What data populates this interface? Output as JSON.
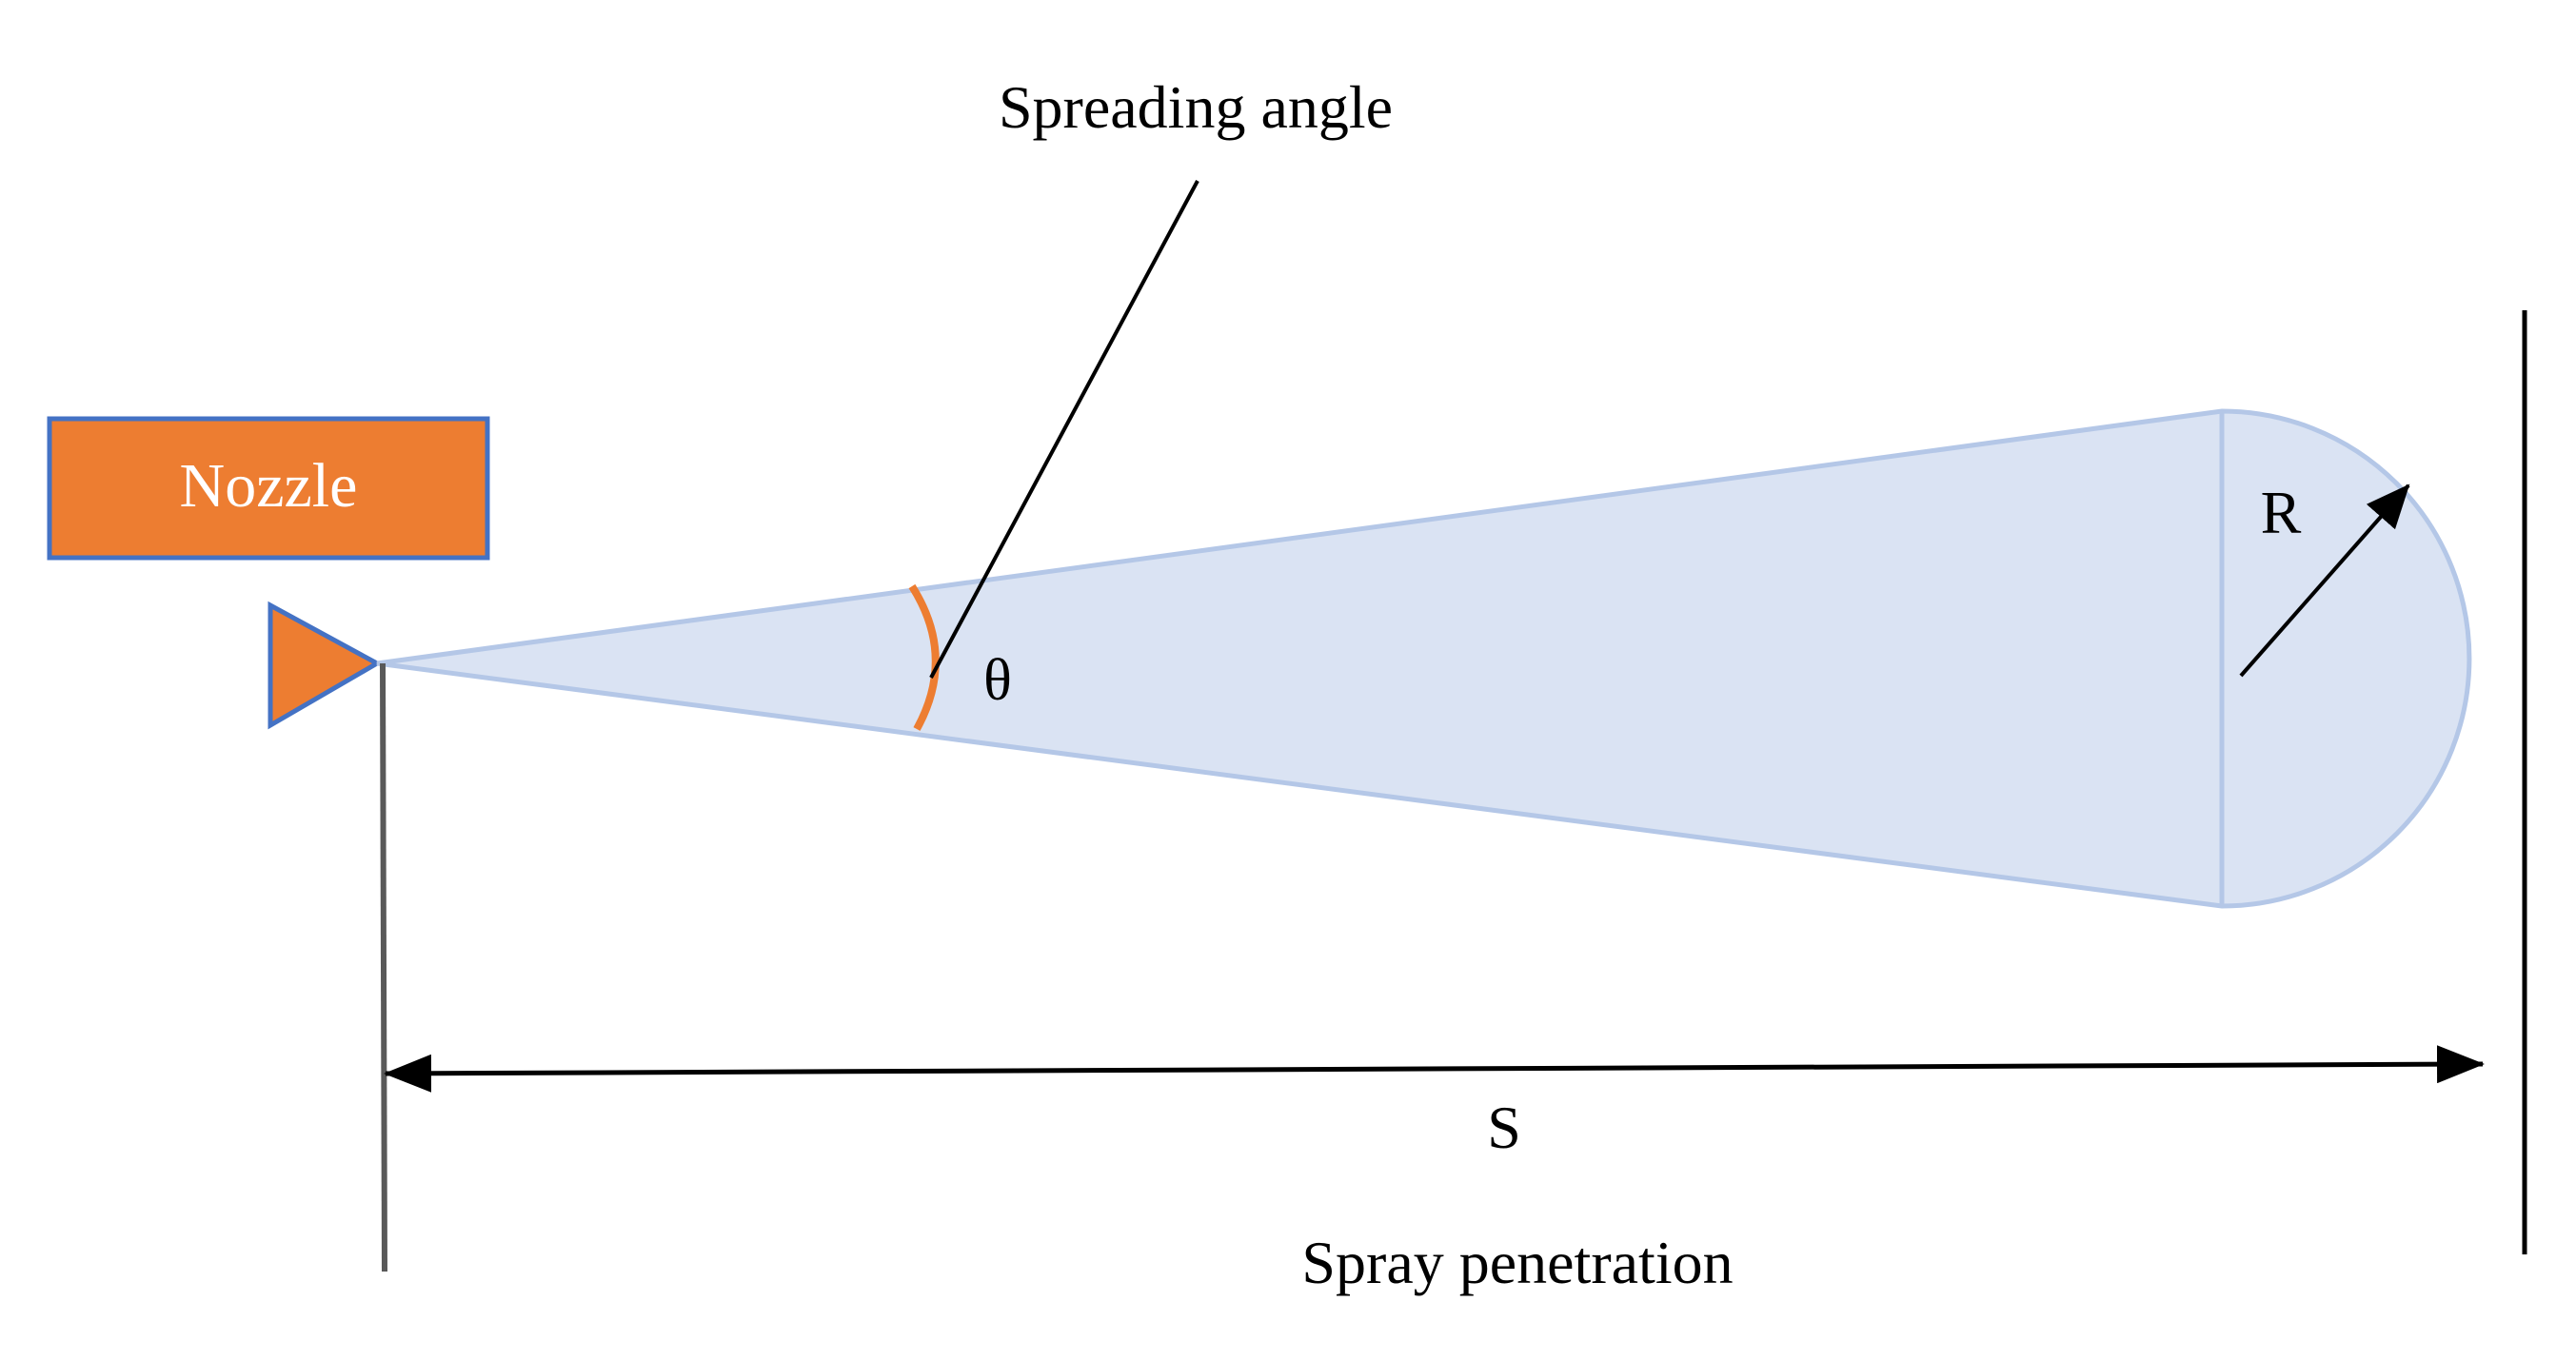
{
  "diagram": {
    "nozzle_label": "Nozzle",
    "spreading_angle_label": "Spreading angle",
    "theta_label": "θ",
    "radius_label": "R",
    "distance_label": "S",
    "penetration_label": "Spray penetration",
    "colors": {
      "nozzle_fill": "#ED7D31",
      "nozzle_border": "#4472C4",
      "spray_fill": "#DAE3F3",
      "spray_edge": "#B4C7E7",
      "angle_arc": "#ED7D31",
      "lines": "#000000"
    }
  }
}
